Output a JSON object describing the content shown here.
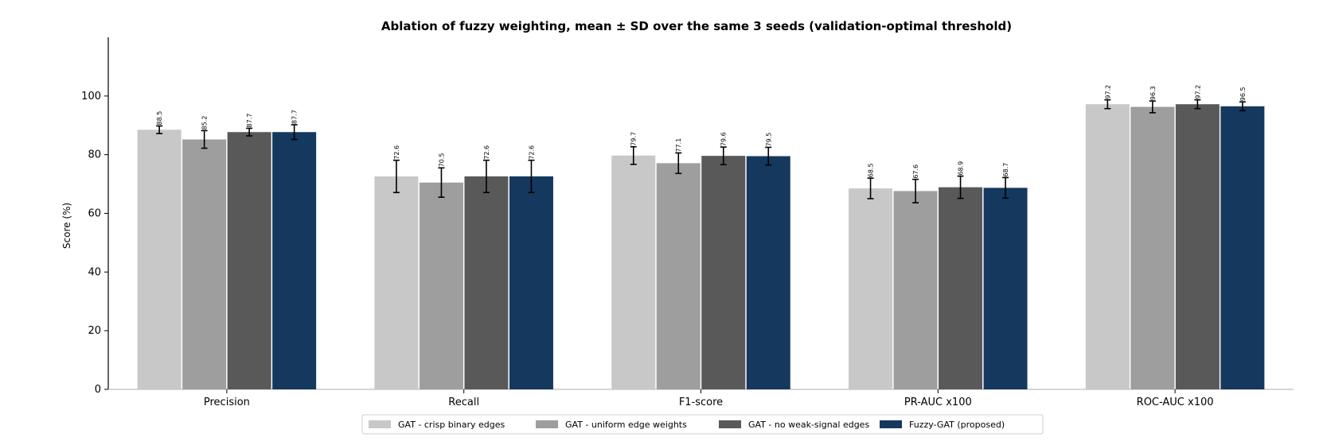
{
  "chart_data": {
    "type": "bar",
    "title": "Ablation of fuzzy weighting, mean ± SD over the same 3 seeds (validation-optimal threshold)",
    "xlabel": "",
    "ylabel": "Score (%)",
    "ylim": [
      0,
      120
    ],
    "yticks": [
      0,
      20,
      40,
      60,
      80,
      100
    ],
    "grid": false,
    "legend_position": "bottom-center",
    "categories": [
      "Precision",
      "Recall",
      "F1-score",
      "PR-AUC x100",
      "ROC-AUC x100"
    ],
    "series": [
      {
        "name": "GAT - crisp binary edges",
        "color": "#c8c8c8",
        "values": [
          88.5,
          72.6,
          79.7,
          68.5,
          97.2
        ],
        "errors": [
          1.3,
          5.5,
          3.0,
          3.5,
          1.5
        ],
        "labels": [
          "88.5",
          "72.6",
          "79.7",
          "68.5",
          "97.2"
        ]
      },
      {
        "name": "GAT - uniform edge weights",
        "color": "#9e9e9e",
        "values": [
          85.2,
          70.5,
          77.1,
          67.6,
          96.3
        ],
        "errors": [
          3.0,
          5.0,
          3.5,
          4.0,
          2.0
        ],
        "labels": [
          "85.2",
          "70.5",
          "77.1",
          "67.6",
          "96.3"
        ]
      },
      {
        "name": "GAT - no weak-signal edges",
        "color": "#595959",
        "values": [
          87.7,
          72.6,
          79.6,
          68.9,
          97.2
        ],
        "errors": [
          1.3,
          5.5,
          3.0,
          3.8,
          1.5
        ],
        "labels": [
          "87.7",
          "72.6",
          "79.6",
          "68.9",
          "97.2"
        ]
      },
      {
        "name": "Fuzzy-GAT (proposed)",
        "color": "#15385e",
        "values": [
          87.7,
          72.6,
          79.5,
          68.7,
          96.5
        ],
        "errors": [
          2.5,
          5.5,
          3.0,
          3.5,
          1.5
        ],
        "labels": [
          "87.7",
          "72.6",
          "79.5",
          "68.7",
          "96.5"
        ]
      }
    ]
  }
}
